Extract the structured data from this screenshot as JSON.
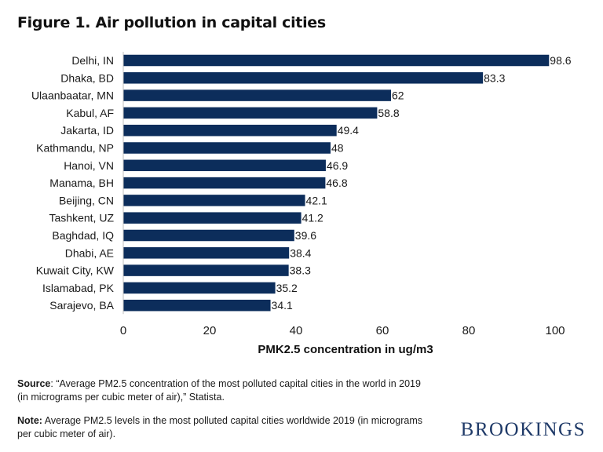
{
  "title": "Figure 1. Air pollution in capital cities",
  "source_label": "Source",
  "source_text": ": “Average PM2.5 concentration of the most polluted capital cities in the world in 2019 (in micrograms per cubic meter of air),” Statista.",
  "note_label": "Note:",
  "note_text": " Average PM2.5 levels in the most polluted capital cities worldwide 2019 (in micrograms per cubic meter of air).",
  "brand": "BROOKINGS",
  "colors": {
    "bar": "#0c2d5b"
  },
  "chart_data": {
    "type": "bar",
    "orientation": "horizontal",
    "categories": [
      "Delhi, IN",
      "Dhaka, BD",
      "Ulaanbaatar, MN",
      "Kabul, AF",
      "Jakarta, ID",
      "Kathmandu, NP",
      "Hanoi, VN",
      "Manama, BH",
      "Beijing, CN",
      "Tashkent, UZ",
      "Baghdad, IQ",
      "Dhabi, AE",
      "Kuwait City, KW",
      "Islamabad, PK",
      "Sarajevo, BA"
    ],
    "values": [
      98.6,
      83.3,
      62,
      58.8,
      49.4,
      48,
      46.9,
      46.8,
      42.1,
      41.2,
      39.6,
      38.4,
      38.3,
      35.2,
      34.1
    ],
    "xlabel": "PMK2.5 concentration in ug/m3",
    "ylabel": "",
    "xlim": [
      0,
      100
    ],
    "xticks": [
      0,
      20,
      40,
      60,
      80,
      100
    ],
    "grid": false,
    "legend": "none"
  }
}
